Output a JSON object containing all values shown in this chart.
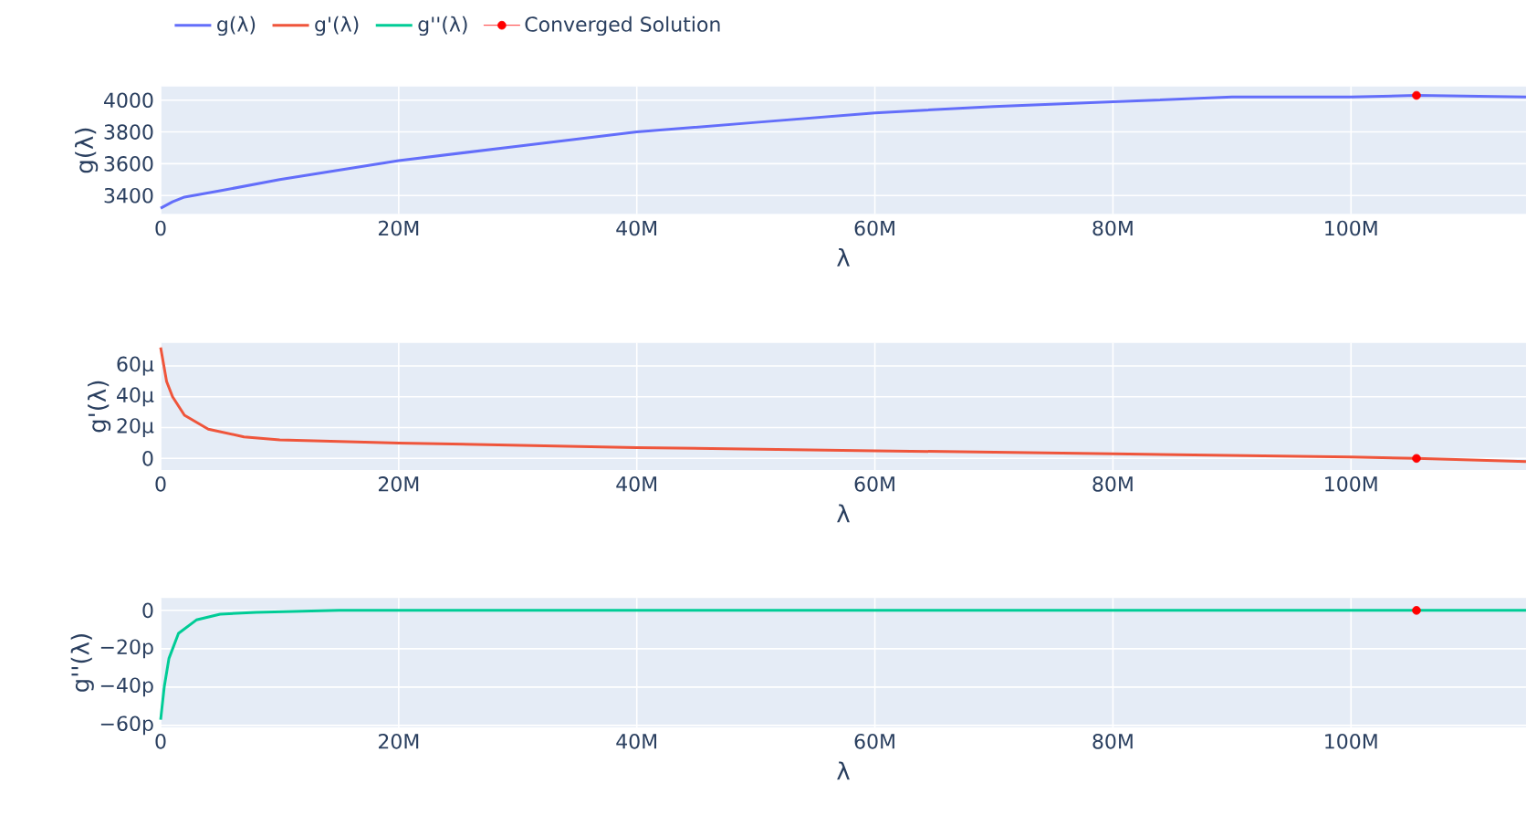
{
  "chart_data": [
    {
      "type": "line",
      "xlabel": "λ",
      "ylabel": "g(λ)",
      "legend": "top",
      "grid": true,
      "xlim": [
        0,
        114.7
      ],
      "ylim": [
        3283,
        4086
      ],
      "xticks": [
        0,
        {
          "value": 20,
          "label": "20M"
        },
        {
          "value": 40,
          "label": "40M"
        },
        {
          "value": 60,
          "label": "60M"
        },
        {
          "value": 80,
          "label": "80M"
        },
        {
          "value": 100,
          "label": "100M"
        }
      ],
      "yticks": [
        3400,
        3600,
        3800,
        4000
      ],
      "series": [
        {
          "name": "g(λ)",
          "color": "#636efa",
          "marker": "none",
          "x": [
            0,
            1,
            2,
            5,
            10,
            20,
            30,
            40,
            50,
            60,
            70,
            80,
            90,
            100,
            105.5,
            114.7
          ],
          "values": [
            3320,
            3360,
            3390,
            3430,
            3500,
            3620,
            3710,
            3800,
            3860,
            3920,
            3960,
            3990,
            4020,
            4020,
            4030,
            4020
          ]
        },
        {
          "name": "Converged Solution",
          "type": "scatter",
          "color": "#ff0000",
          "marker": "circle",
          "x": [
            105.5
          ],
          "values": [
            4030
          ]
        }
      ]
    },
    {
      "type": "line",
      "xlabel": "λ",
      "ylabel": "g'(λ)",
      "grid": true,
      "xlim": [
        0,
        114.7
      ],
      "ylim": [
        -7.5,
        75.2
      ],
      "xticks": [
        0,
        {
          "value": 20,
          "label": "20M"
        },
        {
          "value": 40,
          "label": "40M"
        },
        {
          "value": 60,
          "label": "60M"
        },
        {
          "value": 80,
          "label": "80M"
        },
        {
          "value": 100,
          "label": "100M"
        }
      ],
      "yticks": [
        0,
        {
          "value": 20,
          "label": "20µ"
        },
        {
          "value": 40,
          "label": "40µ"
        },
        {
          "value": 60,
          "label": "60µ"
        }
      ],
      "series": [
        {
          "name": "g'(λ)",
          "color": "#ef553b",
          "marker": "none",
          "x": [
            0,
            0.5,
            1,
            2,
            4,
            7,
            10,
            20,
            40,
            60,
            80,
            100,
            105.5,
            114.7
          ],
          "values": [
            72,
            50,
            40,
            28,
            19,
            14,
            12,
            10,
            7,
            5,
            3,
            1,
            0,
            -2
          ]
        },
        {
          "type": "scatter",
          "color": "#ff0000",
          "marker": "circle",
          "x": [
            105.5
          ],
          "values": [
            0
          ]
        }
      ]
    },
    {
      "type": "line",
      "xlabel": "λ",
      "ylabel": "g''(λ)",
      "grid": true,
      "xlim": [
        0,
        114.7
      ],
      "ylim": [
        -61,
        6.5
      ],
      "xticks": [
        0,
        {
          "value": 20,
          "label": "20M"
        },
        {
          "value": 40,
          "label": "40M"
        },
        {
          "value": 60,
          "label": "60M"
        },
        {
          "value": 80,
          "label": "80M"
        },
        {
          "value": 100,
          "label": "100M"
        }
      ],
      "yticks": [
        {
          "value": -60,
          "label": "−60p"
        },
        {
          "value": -40,
          "label": "−40p"
        },
        {
          "value": -20,
          "label": "−20p"
        },
        0
      ],
      "series": [
        {
          "name": "g''(λ)",
          "color": "#00cc96",
          "marker": "none",
          "x": [
            0,
            0.3,
            0.7,
            1.5,
            3,
            5,
            8,
            15,
            40,
            80,
            105.5,
            114.7
          ],
          "values": [
            -57,
            -40,
            -25,
            -12,
            -5,
            -2,
            -1,
            0,
            0,
            0,
            0,
            0
          ]
        },
        {
          "type": "scatter",
          "color": "#ff0000",
          "marker": "circle",
          "x": [
            105.5
          ],
          "values": [
            0
          ]
        }
      ]
    }
  ]
}
